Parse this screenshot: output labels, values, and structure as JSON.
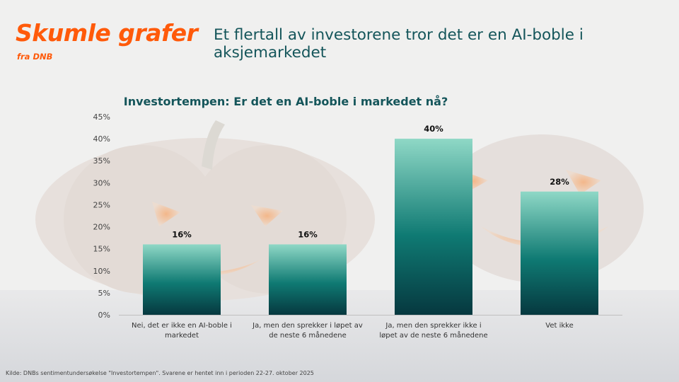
{
  "header": {
    "brand": "Skumle grafer",
    "brand_sub": "fra DNB",
    "headline": "Et flertall av investorene tror det er en AI-boble i aksjemarkedet"
  },
  "colors": {
    "brand": "#ff5a0a",
    "headline": "#14555a",
    "bar_top": "#8fd8c6",
    "bar_mid": "#0f7a73",
    "bar_bottom": "#06383f"
  },
  "chart_data": {
    "type": "bar",
    "title": "Investortempen: Er det en AI-boble i markedet nå?",
    "categories": [
      [
        "Nei, det er ikke en AI-boble i",
        "markedet"
      ],
      [
        "Ja, men den sprekker i løpet av",
        "de neste 6 månedene"
      ],
      [
        "Ja, men den sprekker ikke i",
        "løpet av de neste 6 månedene"
      ],
      [
        "Vet ikke"
      ]
    ],
    "values": [
      16,
      16,
      40,
      28
    ],
    "data_labels": [
      "16%",
      "16%",
      "40%",
      "28%"
    ],
    "ylim": [
      0,
      45
    ],
    "yticks": [
      "0%",
      "5%",
      "10%",
      "15%",
      "20%",
      "25%",
      "30%",
      "35%",
      "40%",
      "45%"
    ],
    "xlabel": "",
    "ylabel": "",
    "grid": false
  },
  "footer": {
    "source": "Kilde: DNBs sentimentundersøkelse \"Investortempen\". Svarene er hentet inn i perioden 22-27. oktober 2025"
  }
}
